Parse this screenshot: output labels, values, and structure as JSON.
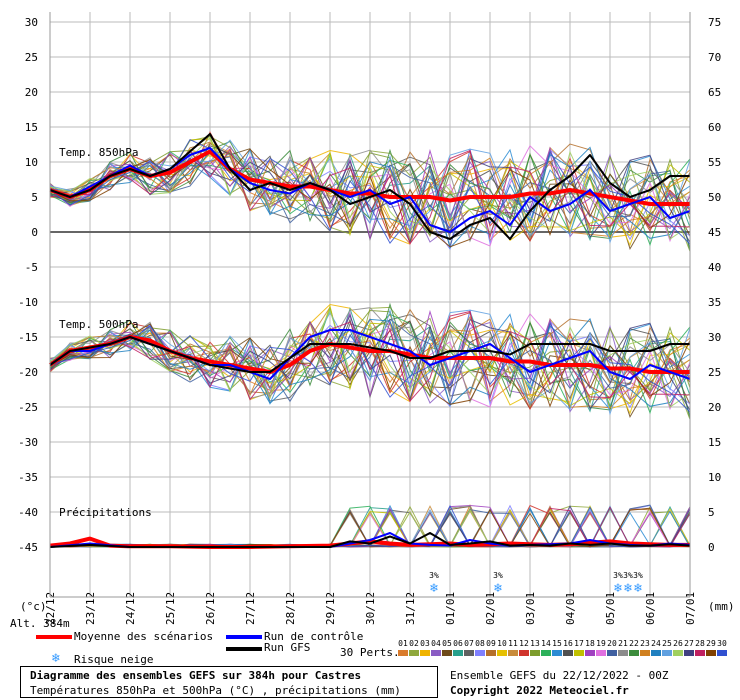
{
  "chart_data": {
    "type": "line",
    "title": "Diagramme des ensembles GEFS sur 384h pour Castres",
    "subtitle": "Températures 850hPa et 500hPa (°C) , précipitations (mm)",
    "run_info": "Ensemble GEFS du 22/12/2022 - 00Z",
    "copyright": "Copyright 2022 Meteociel.fr",
    "left_axis_unit": "(°c)",
    "right_axis_unit": "(mm)",
    "alt_label": "Alt. 384m",
    "left_ticks": [
      30,
      25,
      20,
      15,
      10,
      5,
      0,
      -5,
      -10,
      -15,
      -20,
      -25,
      -30,
      -35,
      -40,
      -45
    ],
    "right_ticks": [
      75,
      70,
      65,
      60,
      55,
      50,
      45,
      40,
      35,
      30,
      25,
      20,
      15,
      10,
      5,
      0
    ],
    "ylim_temp": [
      -45,
      30
    ],
    "x_dates": [
      "22/12",
      "23/12",
      "24/12",
      "25/12",
      "26/12",
      "27/12",
      "28/12",
      "29/12",
      "30/12",
      "31/12",
      "01/01",
      "02/01",
      "03/01",
      "04/01",
      "05/01",
      "06/01",
      "07/01"
    ],
    "section_labels": {
      "t850": "Temp. 850hPa",
      "t500": "Temp. 500hPa",
      "precip": "Précipitations"
    },
    "legend": {
      "mean": "Moyenne des scénarios",
      "control": "Run de contrôle",
      "gfs": "Run GFS",
      "snow": "Risque neige",
      "perts": "30 Perts."
    },
    "snow_markers": [
      {
        "day": 9.6,
        "count": 1,
        "label": "3%"
      },
      {
        "day": 11.2,
        "count": 1,
        "label": "3%"
      },
      {
        "day": 14.2,
        "count": 3,
        "label": "3%"
      }
    ],
    "member_ids": [
      "01",
      "02",
      "03",
      "04",
      "05",
      "06",
      "07",
      "08",
      "09",
      "10",
      "11",
      "12",
      "13",
      "14",
      "15",
      "16",
      "17",
      "18",
      "19",
      "20",
      "21",
      "22",
      "23",
      "24",
      "25",
      "26",
      "27",
      "28",
      "29",
      "30"
    ],
    "member_colors": [
      "#d97b2c",
      "#8fa83c",
      "#f0b400",
      "#8a5cc4",
      "#6e4a1a",
      "#28a08c",
      "#606060",
      "#8080ff",
      "#b5702b",
      "#e6c000",
      "#c88b3a",
      "#d0342c",
      "#7d9c2c",
      "#2cb05a",
      "#2c8cd4",
      "#505050",
      "#c0c000",
      "#a040c0",
      "#e070e0",
      "#4060a0",
      "#8c8c8c",
      "#3c8c3c",
      "#d08020",
      "#2080c0",
      "#60a0e0",
      "#a0d060",
      "#404080",
      "#c02060",
      "#804000",
      "#3050d0"
    ],
    "series": [
      {
        "name": "Moyenne des scénarios",
        "color": "#ff0000",
        "level": "850",
        "x": [
          0,
          0.5,
          1,
          1.5,
          2,
          2.5,
          3,
          3.5,
          4,
          4.5,
          5,
          5.5,
          6,
          6.5,
          7,
          7.5,
          8,
          8.5,
          9,
          9.5,
          10,
          10.5,
          11,
          11.5,
          12,
          12.5,
          13,
          13.5,
          14,
          14.5,
          15,
          15.5,
          16
        ],
        "y": [
          6,
          5,
          6,
          8,
          9,
          8,
          8.5,
          10,
          11.5,
          9,
          7.5,
          7,
          6.5,
          6.5,
          6,
          5.5,
          5.5,
          5,
          5,
          5,
          4.5,
          5,
          5,
          5,
          5.5,
          5.5,
          6,
          5.5,
          5,
          4.5,
          4,
          4,
          4
        ]
      },
      {
        "name": "Run de contrôle",
        "color": "#0000ff",
        "level": "850",
        "x": [
          0,
          0.5,
          1,
          1.5,
          2,
          2.5,
          3,
          3.5,
          4,
          4.5,
          5,
          5.5,
          6,
          6.5,
          7,
          7.5,
          8,
          8.5,
          9,
          9.5,
          10,
          10.5,
          11,
          11.5,
          12,
          12.5,
          13,
          13.5,
          14,
          14.5,
          15,
          15.5,
          16
        ],
        "y": [
          6,
          5,
          6.5,
          8,
          9.5,
          8,
          9,
          11,
          12,
          9,
          7,
          6,
          5.5,
          7,
          6,
          5,
          6,
          4,
          5,
          1,
          0,
          2,
          3,
          1,
          5,
          3,
          4,
          6,
          3,
          4,
          5,
          2,
          3
        ]
      },
      {
        "name": "Run GFS",
        "color": "#000000",
        "level": "850",
        "x": [
          0,
          0.5,
          1,
          1.5,
          2,
          2.5,
          3,
          3.5,
          4,
          4.5,
          5,
          5.5,
          6,
          6.5,
          7,
          7.5,
          8,
          8.5,
          9,
          9.5,
          10,
          10.5,
          11,
          11.5,
          12,
          12.5,
          13,
          13.5,
          14,
          14.5,
          15,
          15.5,
          16
        ],
        "y": [
          6,
          5,
          6,
          8,
          9,
          8,
          9,
          11.5,
          14,
          9,
          6,
          7,
          6,
          7,
          6,
          4,
          5,
          6,
          4,
          0,
          -1,
          1,
          2,
          -1,
          3,
          6,
          8,
          11,
          7,
          5,
          6,
          8,
          8
        ]
      },
      {
        "name": "Moyenne des scénarios",
        "color": "#ff0000",
        "level": "500",
        "x": [
          0,
          0.5,
          1,
          1.5,
          2,
          2.5,
          3,
          3.5,
          4,
          4.5,
          5,
          5.5,
          6,
          6.5,
          7,
          7.5,
          8,
          8.5,
          9,
          9.5,
          10,
          10.5,
          11,
          11.5,
          12,
          12.5,
          13,
          13.5,
          14,
          14.5,
          15,
          15.5,
          16
        ],
        "y": [
          -19,
          -17,
          -16.5,
          -16,
          -15,
          -15.5,
          -17,
          -18,
          -18.5,
          -19,
          -19.5,
          -20,
          -19,
          -17,
          -16,
          -16.5,
          -17,
          -17,
          -17.5,
          -18,
          -18,
          -18,
          -18,
          -18.5,
          -18.5,
          -19,
          -19,
          -19,
          -19.5,
          -19.5,
          -20,
          -20,
          -20
        ]
      },
      {
        "name": "Run de contrôle",
        "color": "#0000ff",
        "level": "500",
        "x": [
          0,
          0.5,
          1,
          1.5,
          2,
          2.5,
          3,
          3.5,
          4,
          4.5,
          5,
          5.5,
          6,
          6.5,
          7,
          7.5,
          8,
          8.5,
          9,
          9.5,
          10,
          10.5,
          11,
          11.5,
          12,
          12.5,
          13,
          13.5,
          14,
          14.5,
          15,
          15.5,
          16
        ],
        "y": [
          -19,
          -17,
          -17,
          -16,
          -15,
          -16,
          -17,
          -18,
          -19,
          -19,
          -20,
          -21,
          -18,
          -15,
          -14,
          -14,
          -15,
          -16,
          -17,
          -19,
          -18,
          -17,
          -16,
          -18,
          -20,
          -19,
          -18,
          -17,
          -20,
          -21,
          -19,
          -20,
          -21
        ]
      },
      {
        "name": "Run GFS",
        "color": "#000000",
        "level": "500",
        "x": [
          0,
          0.5,
          1,
          1.5,
          2,
          2.5,
          3,
          3.5,
          4,
          4.5,
          5,
          5.5,
          6,
          6.5,
          7,
          7.5,
          8,
          8.5,
          9,
          9.5,
          10,
          10.5,
          11,
          11.5,
          12,
          12.5,
          13,
          13.5,
          14,
          14.5,
          15,
          15.5,
          16
        ],
        "y": [
          -19,
          -17,
          -16.5,
          -16,
          -15,
          -16,
          -17,
          -18,
          -19,
          -19.5,
          -20,
          -20,
          -18,
          -16,
          -16,
          -16,
          -16.5,
          -17,
          -18,
          -18,
          -17,
          -17,
          -17,
          -17.5,
          -16,
          -16,
          -16,
          -16,
          -17,
          -17,
          -17,
          -16,
          -16
        ]
      },
      {
        "name": "Moyenne des scénarios",
        "color": "#ff0000",
        "level": "precip",
        "x": [
          0,
          0.5,
          1,
          1.5,
          2,
          3,
          4,
          5,
          6,
          7,
          7.5,
          8,
          8.5,
          9,
          9.5,
          10,
          10.5,
          11,
          11.5,
          12,
          12.5,
          13,
          13.5,
          14,
          14.5,
          15,
          15.5,
          16
        ],
        "y": [
          0.2,
          0.5,
          1.2,
          0.2,
          0.1,
          0.1,
          0,
          0,
          0.1,
          0.2,
          0.5,
          0.8,
          0.5,
          0.3,
          0.4,
          0.5,
          0.3,
          0.4,
          0.5,
          0.4,
          0.3,
          0.4,
          0.6,
          0.8,
          0.5,
          0.4,
          0.3,
          0.3
        ]
      },
      {
        "name": "Run de contrôle",
        "color": "#0000ff",
        "level": "precip",
        "x": [
          0,
          1,
          2,
          3,
          4,
          5,
          6,
          7,
          7.5,
          8,
          8.5,
          9,
          9.5,
          10,
          10.5,
          11,
          11.5,
          12,
          12.5,
          13,
          13.5,
          14,
          14.5,
          15,
          15.5,
          16
        ],
        "y": [
          0,
          0.5,
          0,
          0,
          0,
          0,
          0,
          0,
          0.5,
          1,
          2,
          0.5,
          0.3,
          0.2,
          1,
          0.5,
          0.2,
          0.3,
          0.4,
          0.5,
          1,
          0.5,
          0.3,
          0.2,
          0.5,
          0.3
        ]
      },
      {
        "name": "Run GFS",
        "color": "#000000",
        "level": "precip",
        "x": [
          0,
          1,
          2,
          3,
          4,
          5,
          6,
          7,
          7.5,
          8,
          8.5,
          9,
          9.5,
          10,
          10.5,
          11,
          11.5,
          12,
          12.5,
          13,
          13.5,
          14,
          14.5,
          15,
          15.5,
          16
        ],
        "y": [
          0,
          0.3,
          0,
          0,
          0,
          0,
          0,
          0,
          0.8,
          0.5,
          1.5,
          0.5,
          2,
          0.3,
          0.5,
          0.8,
          0.2,
          0.3,
          0.2,
          0.5,
          0.3,
          0.5,
          0.2,
          0.2,
          0.4,
          0.2
        ]
      }
    ]
  }
}
